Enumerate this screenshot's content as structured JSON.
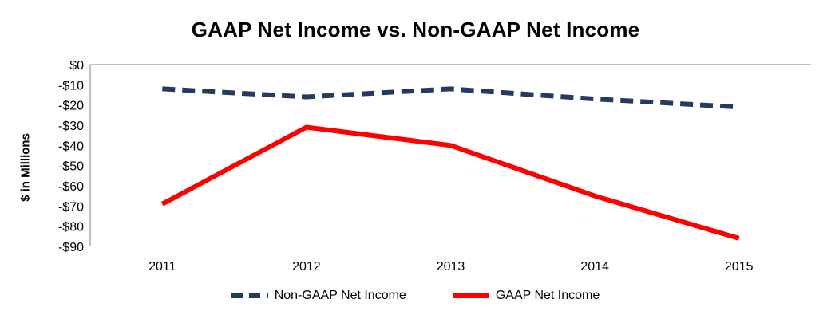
{
  "chart_data": {
    "type": "line",
    "title": "GAAP Net Income vs. Non-GAAP Net Income",
    "ylabel": "$ in Millions",
    "xlabel": "",
    "categories": [
      "2011",
      "2012",
      "2013",
      "2014",
      "2015"
    ],
    "ylim": [
      -90,
      0
    ],
    "y_ticks": [
      "$0",
      "-$10",
      "-$20",
      "-$30",
      "-$40",
      "-$50",
      "-$60",
      "-$70",
      "-$80",
      "-$90"
    ],
    "y_tick_values": [
      0,
      -10,
      -20,
      -30,
      -40,
      -50,
      -60,
      -70,
      -80,
      -90
    ],
    "series": [
      {
        "name": "Non-GAAP Net Income",
        "values": [
          -12,
          -16,
          -12,
          -17,
          -21
        ],
        "color": "#243a5e",
        "style": "dashed"
      },
      {
        "name": "GAAP Net Income",
        "values": [
          -69,
          -31,
          -40,
          -65,
          -86
        ],
        "color": "#ff0000",
        "style": "solid"
      }
    ],
    "grid": false,
    "legend_position": "bottom"
  }
}
